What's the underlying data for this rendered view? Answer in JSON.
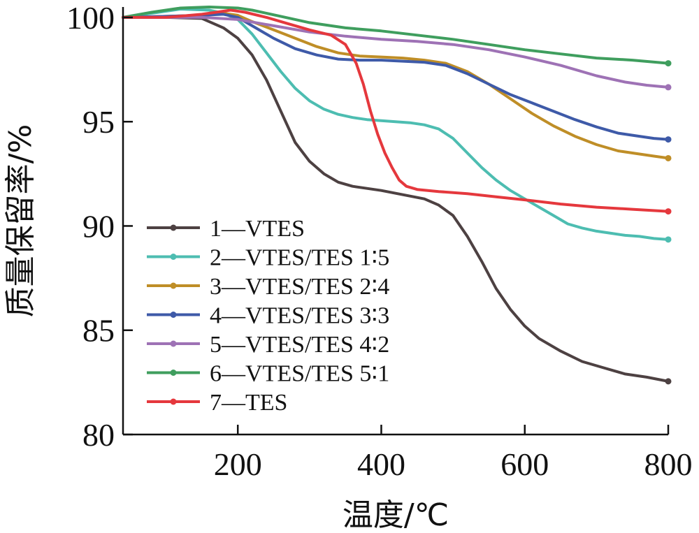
{
  "chart_data": {
    "type": "line",
    "xlabel": "温度/℃",
    "ylabel": "质量保留率/%",
    "xlim": [
      40,
      800
    ],
    "ylim": [
      80,
      100.5
    ],
    "xticks": [
      200,
      400,
      600,
      800
    ],
    "xtick_labels": [
      "200",
      "400",
      "600",
      "800"
    ],
    "yticks": [
      80,
      85,
      90,
      95,
      100
    ],
    "ytick_labels": [
      "80",
      "85",
      "90",
      "95",
      "100"
    ],
    "grid": false,
    "legend_position": "lower-left",
    "series": [
      {
        "name": "1—VTES",
        "color": "#4d4142",
        "points": [
          [
            40,
            100
          ],
          [
            100,
            100
          ],
          [
            150,
            99.95
          ],
          [
            180,
            99.5
          ],
          [
            200,
            99.0
          ],
          [
            220,
            98.2
          ],
          [
            240,
            97.0
          ],
          [
            260,
            95.5
          ],
          [
            280,
            94.0
          ],
          [
            300,
            93.1
          ],
          [
            320,
            92.5
          ],
          [
            340,
            92.1
          ],
          [
            360,
            91.9
          ],
          [
            380,
            91.8
          ],
          [
            400,
            91.7
          ],
          [
            430,
            91.5
          ],
          [
            460,
            91.3
          ],
          [
            480,
            91.0
          ],
          [
            500,
            90.5
          ],
          [
            520,
            89.5
          ],
          [
            540,
            88.3
          ],
          [
            560,
            87.0
          ],
          [
            580,
            86.0
          ],
          [
            600,
            85.2
          ],
          [
            620,
            84.6
          ],
          [
            650,
            84.0
          ],
          [
            680,
            83.5
          ],
          [
            710,
            83.2
          ],
          [
            740,
            82.9
          ],
          [
            770,
            82.75
          ],
          [
            800,
            82.55
          ]
        ]
      },
      {
        "name": "2—VTES/TES 1∶5",
        "color": "#4dbdb1",
        "points": [
          [
            40,
            100
          ],
          [
            80,
            100.2
          ],
          [
            120,
            100.4
          ],
          [
            160,
            100.35
          ],
          [
            180,
            100.2
          ],
          [
            200,
            99.9
          ],
          [
            220,
            99.2
          ],
          [
            240,
            98.3
          ],
          [
            260,
            97.4
          ],
          [
            280,
            96.6
          ],
          [
            300,
            96.0
          ],
          [
            320,
            95.6
          ],
          [
            340,
            95.35
          ],
          [
            360,
            95.2
          ],
          [
            380,
            95.1
          ],
          [
            400,
            95.05
          ],
          [
            420,
            95.0
          ],
          [
            440,
            94.95
          ],
          [
            460,
            94.85
          ],
          [
            480,
            94.65
          ],
          [
            500,
            94.2
          ],
          [
            520,
            93.5
          ],
          [
            540,
            92.8
          ],
          [
            560,
            92.2
          ],
          [
            580,
            91.7
          ],
          [
            600,
            91.3
          ],
          [
            620,
            90.9
          ],
          [
            640,
            90.5
          ],
          [
            660,
            90.1
          ],
          [
            680,
            89.9
          ],
          [
            700,
            89.75
          ],
          [
            720,
            89.65
          ],
          [
            740,
            89.55
          ],
          [
            760,
            89.5
          ],
          [
            780,
            89.4
          ],
          [
            800,
            89.35
          ]
        ]
      },
      {
        "name": "3—VTES/TES 2∶4",
        "color": "#bf8e27",
        "points": [
          [
            40,
            100
          ],
          [
            100,
            100.05
          ],
          [
            150,
            100.1
          ],
          [
            180,
            100.2
          ],
          [
            200,
            100.1
          ],
          [
            220,
            99.8
          ],
          [
            250,
            99.4
          ],
          [
            280,
            99.0
          ],
          [
            310,
            98.6
          ],
          [
            340,
            98.3
          ],
          [
            370,
            98.15
          ],
          [
            400,
            98.1
          ],
          [
            430,
            98.05
          ],
          [
            460,
            97.95
          ],
          [
            490,
            97.8
          ],
          [
            520,
            97.4
          ],
          [
            550,
            96.8
          ],
          [
            580,
            96.1
          ],
          [
            610,
            95.4
          ],
          [
            640,
            94.8
          ],
          [
            670,
            94.3
          ],
          [
            700,
            93.9
          ],
          [
            730,
            93.6
          ],
          [
            760,
            93.45
          ],
          [
            780,
            93.35
          ],
          [
            800,
            93.25
          ]
        ]
      },
      {
        "name": "4—VTES/TES 3∶3",
        "color": "#3e5aa8",
        "points": [
          [
            40,
            100
          ],
          [
            100,
            100.05
          ],
          [
            150,
            100.1
          ],
          [
            180,
            100.15
          ],
          [
            200,
            100.0
          ],
          [
            220,
            99.6
          ],
          [
            250,
            99.0
          ],
          [
            280,
            98.5
          ],
          [
            310,
            98.2
          ],
          [
            340,
            98.0
          ],
          [
            370,
            97.95
          ],
          [
            400,
            97.95
          ],
          [
            430,
            97.9
          ],
          [
            460,
            97.85
          ],
          [
            490,
            97.7
          ],
          [
            520,
            97.3
          ],
          [
            550,
            96.8
          ],
          [
            580,
            96.3
          ],
          [
            610,
            95.9
          ],
          [
            640,
            95.5
          ],
          [
            670,
            95.1
          ],
          [
            700,
            94.75
          ],
          [
            730,
            94.45
          ],
          [
            760,
            94.3
          ],
          [
            780,
            94.2
          ],
          [
            800,
            94.15
          ]
        ]
      },
      {
        "name": "5—VTES/TES 4∶2",
        "color": "#9e72b5",
        "points": [
          [
            40,
            100
          ],
          [
            100,
            100.0
          ],
          [
            150,
            100.0
          ],
          [
            200,
            99.9
          ],
          [
            250,
            99.6
          ],
          [
            300,
            99.3
          ],
          [
            350,
            99.1
          ],
          [
            400,
            98.95
          ],
          [
            450,
            98.85
          ],
          [
            500,
            98.7
          ],
          [
            550,
            98.45
          ],
          [
            600,
            98.1
          ],
          [
            650,
            97.7
          ],
          [
            700,
            97.2
          ],
          [
            740,
            96.9
          ],
          [
            770,
            96.75
          ],
          [
            800,
            96.65
          ]
        ]
      },
      {
        "name": "6—VTES/TES 5∶1",
        "color": "#3f9e5e",
        "points": [
          [
            40,
            100
          ],
          [
            80,
            100.25
          ],
          [
            120,
            100.45
          ],
          [
            160,
            100.5
          ],
          [
            200,
            100.45
          ],
          [
            220,
            100.35
          ],
          [
            260,
            100.05
          ],
          [
            300,
            99.75
          ],
          [
            350,
            99.5
          ],
          [
            400,
            99.35
          ],
          [
            450,
            99.15
          ],
          [
            500,
            98.95
          ],
          [
            550,
            98.7
          ],
          [
            600,
            98.45
          ],
          [
            650,
            98.25
          ],
          [
            700,
            98.05
          ],
          [
            750,
            97.95
          ],
          [
            800,
            97.8
          ]
        ]
      },
      {
        "name": "7—TES",
        "color": "#e5383d",
        "points": [
          [
            40,
            100
          ],
          [
            100,
            100.0
          ],
          [
            150,
            100.15
          ],
          [
            170,
            100.25
          ],
          [
            190,
            100.35
          ],
          [
            210,
            100.25
          ],
          [
            240,
            100.0
          ],
          [
            270,
            99.7
          ],
          [
            300,
            99.4
          ],
          [
            330,
            99.15
          ],
          [
            350,
            98.7
          ],
          [
            365,
            97.8
          ],
          [
            375,
            96.8
          ],
          [
            385,
            95.5
          ],
          [
            395,
            94.4
          ],
          [
            405,
            93.5
          ],
          [
            415,
            92.8
          ],
          [
            425,
            92.2
          ],
          [
            435,
            91.9
          ],
          [
            450,
            91.75
          ],
          [
            480,
            91.65
          ],
          [
            520,
            91.55
          ],
          [
            560,
            91.4
          ],
          [
            600,
            91.25
          ],
          [
            650,
            91.05
          ],
          [
            700,
            90.9
          ],
          [
            750,
            90.8
          ],
          [
            800,
            90.7
          ]
        ]
      }
    ]
  }
}
